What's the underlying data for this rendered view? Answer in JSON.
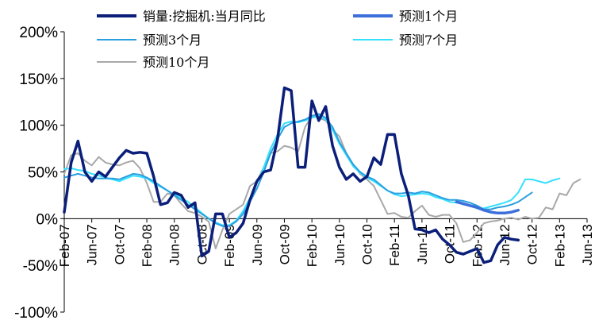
{
  "chart_data": {
    "type": "line",
    "title": "",
    "xlabel": "",
    "ylabel": "",
    "ylim": [
      -100,
      200
    ],
    "yticks": [
      -100,
      -50,
      0,
      50,
      100,
      150,
      200
    ],
    "ytick_labels": [
      "-100%",
      "-50%",
      "0%",
      "50%",
      "100%",
      "150%",
      "200%"
    ],
    "x_range": [
      "2007-02",
      "2013-06"
    ],
    "xtick_labels": [
      "Feb-07",
      "Jun-07",
      "Oct-07",
      "Feb-08",
      "Jun-08",
      "Oct-08",
      "Feb-09",
      "Jun-09",
      "Oct-09",
      "Feb-10",
      "Jun-10",
      "Oct-10",
      "Feb-11",
      "Jun-11",
      "Oct-11",
      "Feb-12",
      "Jun-12",
      "Oct-12",
      "Feb-13",
      "Jun-13"
    ],
    "grid": false,
    "legend_position": "top",
    "series": [
      {
        "name": "销量:挖掘机:当月同比",
        "color": "#0b1f7a",
        "width": 3.5,
        "x": [
          "2007-02",
          "2007-03",
          "2007-04",
          "2007-05",
          "2007-06",
          "2007-07",
          "2007-08",
          "2007-09",
          "2007-10",
          "2007-11",
          "2007-12",
          "2008-01",
          "2008-02",
          "2008-03",
          "2008-04",
          "2008-05",
          "2008-06",
          "2008-07",
          "2008-08",
          "2008-09",
          "2008-10",
          "2008-11",
          "2008-12",
          "2009-01",
          "2009-02",
          "2009-03",
          "2009-04",
          "2009-05",
          "2009-06",
          "2009-07",
          "2009-08",
          "2009-09",
          "2009-10",
          "2009-11",
          "2009-12",
          "2010-01",
          "2010-02",
          "2010-03",
          "2010-04",
          "2010-05",
          "2010-06",
          "2010-07",
          "2010-08",
          "2010-09",
          "2010-10",
          "2010-11",
          "2010-12",
          "2011-01",
          "2011-02",
          "2011-03",
          "2011-04",
          "2011-05",
          "2011-06",
          "2011-07",
          "2011-08",
          "2011-09",
          "2011-10",
          "2011-11",
          "2011-12",
          "2012-01",
          "2012-02",
          "2012-03",
          "2012-04",
          "2012-05",
          "2012-06",
          "2012-07",
          "2012-08"
        ],
        "y": [
          7,
          60,
          83,
          50,
          40,
          50,
          45,
          55,
          65,
          73,
          70,
          71,
          70,
          45,
          15,
          17,
          28,
          25,
          12,
          17,
          -40,
          -35,
          5,
          5,
          -20,
          -15,
          -5,
          20,
          40,
          50,
          52,
          85,
          140,
          137,
          55,
          55,
          126,
          105,
          120,
          78,
          55,
          42,
          48,
          40,
          45,
          65,
          58,
          90,
          90,
          48,
          25,
          -11,
          -12,
          -15,
          -12,
          -22,
          -28,
          -36,
          -38,
          -35,
          -32,
          -47,
          -45,
          -28,
          -20,
          -22,
          -23
        ]
      },
      {
        "name": "预测1个月",
        "color": "#3c6fdb",
        "width": 3.5,
        "x": [
          "2011-11",
          "2011-12",
          "2012-01",
          "2012-02",
          "2012-03",
          "2012-04",
          "2012-05",
          "2012-06",
          "2012-07",
          "2012-08"
        ],
        "y": [
          18,
          16,
          14,
          12,
          9,
          7,
          6,
          6,
          7,
          9
        ]
      },
      {
        "name": "预测3个月",
        "color": "#2a9fe0",
        "width": 2,
        "x": [
          "2007-02",
          "2007-03",
          "2007-04",
          "2007-05",
          "2007-06",
          "2007-07",
          "2007-08",
          "2007-09",
          "2007-10",
          "2007-11",
          "2007-12",
          "2008-01",
          "2008-02",
          "2008-03",
          "2008-04",
          "2008-05",
          "2008-06",
          "2008-07",
          "2008-08",
          "2008-09",
          "2008-10",
          "2008-11",
          "2008-12",
          "2009-01",
          "2009-02",
          "2009-03",
          "2009-04",
          "2009-05",
          "2009-06",
          "2009-07",
          "2009-08",
          "2009-09",
          "2009-10",
          "2009-11",
          "2009-12",
          "2010-01",
          "2010-02",
          "2010-03",
          "2010-04",
          "2010-05",
          "2010-06",
          "2010-07",
          "2010-08",
          "2010-09",
          "2010-10",
          "2010-11",
          "2010-12",
          "2011-01",
          "2011-02",
          "2011-03",
          "2011-04",
          "2011-05",
          "2011-06",
          "2011-07",
          "2011-08",
          "2011-09",
          "2011-10",
          "2011-11",
          "2011-12",
          "2012-01",
          "2012-02",
          "2012-03",
          "2012-04",
          "2012-05",
          "2012-06",
          "2012-07",
          "2012-08",
          "2012-09",
          "2012-10"
        ],
        "y": [
          44,
          46,
          48,
          46,
          44,
          43,
          43,
          43,
          42,
          45,
          48,
          47,
          44,
          40,
          35,
          30,
          25,
          20,
          15,
          10,
          5,
          0,
          -5,
          -8,
          -8,
          -3,
          5,
          18,
          32,
          50,
          70,
          85,
          98,
          102,
          104,
          106,
          110,
          112,
          108,
          98,
          82,
          70,
          58,
          50,
          45,
          42,
          36,
          30,
          27,
          27,
          28,
          27,
          29,
          28,
          25,
          22,
          20,
          20,
          19,
          17,
          14,
          10,
          10,
          12,
          13,
          15,
          18,
          23,
          28
        ]
      },
      {
        "name": "预测7个月",
        "color": "#33e1ff",
        "width": 2,
        "x": [
          "2007-02",
          "2007-03",
          "2007-04",
          "2007-05",
          "2007-06",
          "2007-07",
          "2007-08",
          "2007-09",
          "2007-10",
          "2007-11",
          "2007-12",
          "2008-01",
          "2008-02",
          "2008-03",
          "2008-04",
          "2008-05",
          "2008-06",
          "2008-07",
          "2008-08",
          "2008-09",
          "2008-10",
          "2008-11",
          "2008-12",
          "2009-01",
          "2009-02",
          "2009-03",
          "2009-04",
          "2009-05",
          "2009-06",
          "2009-07",
          "2009-08",
          "2009-09",
          "2009-10",
          "2009-11",
          "2009-12",
          "2010-01",
          "2010-02",
          "2010-03",
          "2010-04",
          "2010-05",
          "2010-06",
          "2010-07",
          "2010-08",
          "2010-09",
          "2010-10",
          "2010-11",
          "2010-12",
          "2011-01",
          "2011-02",
          "2011-03",
          "2011-04",
          "2011-05",
          "2011-06",
          "2011-07",
          "2011-08",
          "2011-09",
          "2011-10",
          "2011-11",
          "2011-12",
          "2012-01",
          "2012-02",
          "2012-03",
          "2012-04",
          "2012-05",
          "2012-06",
          "2012-07",
          "2012-08",
          "2012-09",
          "2012-10",
          "2012-11",
          "2012-12",
          "2013-01",
          "2013-02"
        ],
        "y": [
          53,
          54,
          52,
          51,
          48,
          46,
          44,
          42,
          40,
          43,
          46,
          45,
          43,
          38,
          34,
          30,
          26,
          22,
          18,
          12,
          6,
          0,
          -4,
          -7,
          -7,
          -2,
          8,
          22,
          38,
          55,
          75,
          90,
          102,
          104,
          103,
          105,
          108,
          110,
          106,
          95,
          80,
          68,
          56,
          49,
          44,
          40,
          35,
          30,
          26,
          24,
          25,
          26,
          27,
          26,
          23,
          21,
          18,
          17,
          16,
          14,
          11,
          11,
          13,
          15,
          17,
          20,
          28,
          42,
          42,
          40,
          38,
          41,
          43
        ]
      },
      {
        "name": "预测10个月",
        "color": "#a8a8a8",
        "width": 2,
        "x": [
          "2007-02",
          "2007-03",
          "2007-04",
          "2007-05",
          "2007-06",
          "2007-07",
          "2007-08",
          "2007-09",
          "2007-10",
          "2007-11",
          "2007-12",
          "2008-01",
          "2008-02",
          "2008-03",
          "2008-04",
          "2008-05",
          "2008-06",
          "2008-07",
          "2008-08",
          "2008-09",
          "2008-10",
          "2008-11",
          "2008-12",
          "2009-01",
          "2009-02",
          "2009-03",
          "2009-04",
          "2009-05",
          "2009-06",
          "2009-07",
          "2009-08",
          "2009-09",
          "2009-10",
          "2009-11",
          "2009-12",
          "2010-01",
          "2010-02",
          "2010-03",
          "2010-04",
          "2010-05",
          "2010-06",
          "2010-07",
          "2010-08",
          "2010-09",
          "2010-10",
          "2010-11",
          "2010-12",
          "2011-01",
          "2011-02",
          "2011-03",
          "2011-04",
          "2011-05",
          "2011-06",
          "2011-07",
          "2011-08",
          "2011-09",
          "2011-10",
          "2011-11",
          "2011-12",
          "2012-01",
          "2012-02",
          "2012-03",
          "2012-04",
          "2012-05",
          "2012-06",
          "2012-07",
          "2012-08",
          "2012-09",
          "2012-10",
          "2012-11",
          "2012-12",
          "2013-01",
          "2013-02",
          "2013-03",
          "2013-04",
          "2013-05"
        ],
        "y": [
          48,
          68,
          70,
          62,
          57,
          66,
          60,
          58,
          57,
          60,
          62,
          54,
          38,
          18,
          18,
          27,
          25,
          16,
          8,
          6,
          2,
          -3,
          -32,
          -12,
          5,
          10,
          15,
          35,
          40,
          55,
          70,
          72,
          78,
          76,
          72,
          98,
          110,
          108,
          105,
          95,
          88,
          70,
          58,
          48,
          42,
          35,
          20,
          5,
          6,
          2,
          1,
          8,
          14,
          4,
          2,
          4,
          4,
          -5,
          -25,
          -23,
          -15,
          -5,
          -3,
          -2,
          0,
          1,
          -1,
          2,
          0,
          1,
          12,
          10,
          27,
          25,
          38,
          42
        ]
      }
    ]
  }
}
